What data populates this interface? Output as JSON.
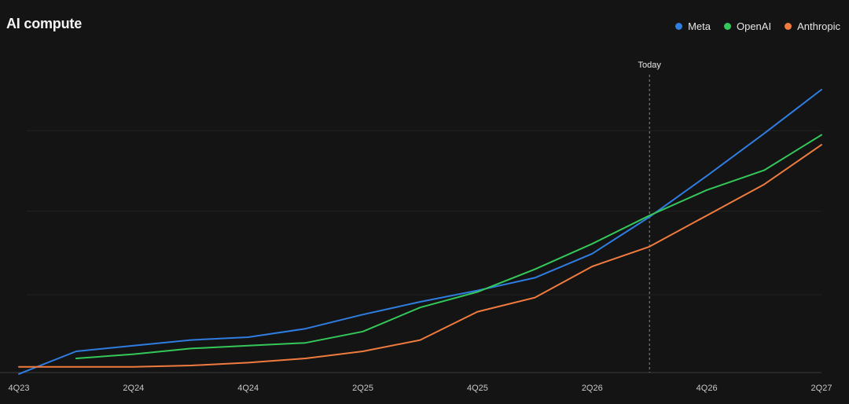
{
  "chart_data": {
    "type": "line",
    "title": "AI compute",
    "xlabel": "",
    "ylabel": "",
    "x_ticks": [
      "4Q23",
      "2Q24",
      "4Q24",
      "2Q25",
      "4Q25",
      "2Q26",
      "4Q26",
      "2Q27"
    ],
    "x": [
      "4Q23",
      "1Q24",
      "2Q24",
      "3Q24",
      "4Q24",
      "1Q25",
      "2Q25",
      "3Q25",
      "4Q25",
      "1Q26",
      "2Q26",
      "3Q26",
      "4Q26",
      "1Q27",
      "2Q27"
    ],
    "ylim": [
      0,
      100
    ],
    "grid": true,
    "legend": "top-right",
    "today": {
      "label": "Today",
      "x": "3Q26"
    },
    "series": [
      {
        "name": "Meta",
        "color": "#2f7de1",
        "values": [
          -0.5,
          7.5,
          9.5,
          11.5,
          12.5,
          15.5,
          20.5,
          25,
          29,
          33.5,
          42,
          55,
          69.5,
          84.5,
          100
        ]
      },
      {
        "name": "OpenAI",
        "color": "#34c759",
        "values": [
          null,
          5,
          6.5,
          8.5,
          9.5,
          10.5,
          14.5,
          23,
          28.5,
          36.5,
          45.5,
          55.5,
          64.5,
          71.5,
          84
        ]
      },
      {
        "name": "Anthropic",
        "color": "#f07b3f",
        "values": [
          2,
          2,
          2,
          2.5,
          3.5,
          5,
          7.5,
          11.5,
          21.5,
          26.5,
          37.5,
          44.5,
          55.5,
          66.5,
          80.5
        ]
      }
    ]
  }
}
